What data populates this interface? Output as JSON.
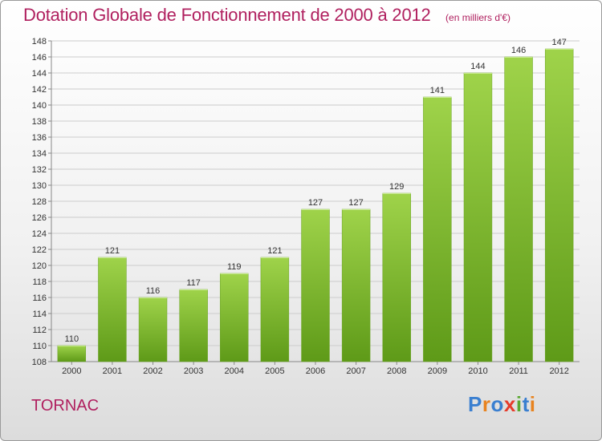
{
  "chart_data": {
    "type": "bar",
    "title": "Dotation Globale de Fonctionnement de 2000 à 2012",
    "unit": "(en milliers d'€)",
    "xlabel": "",
    "ylabel": "",
    "categories": [
      "2000",
      "2001",
      "2002",
      "2003",
      "2004",
      "2005",
      "2006",
      "2007",
      "2008",
      "2009",
      "2010",
      "2011",
      "2012"
    ],
    "values": [
      110,
      121,
      116,
      117,
      119,
      121,
      127,
      127,
      129,
      141,
      144,
      146,
      147
    ],
    "ylim": [
      108,
      148
    ],
    "ytick_step": 2,
    "grid": true,
    "legend": "none",
    "bar_color": "#7cb534",
    "label_color": "#333333"
  },
  "footer": {
    "place": "TORNAC",
    "logo_text": "Proxiti",
    "logo_colors": [
      "#3a7fd0",
      "#e8831f",
      "#3a7fd0",
      "#e63c2c",
      "#5aa832",
      "#3a7fd0",
      "#e8831f"
    ]
  },
  "colors": {
    "title": "#b0205f",
    "grid": "#cccccc",
    "axis": "#888888"
  }
}
